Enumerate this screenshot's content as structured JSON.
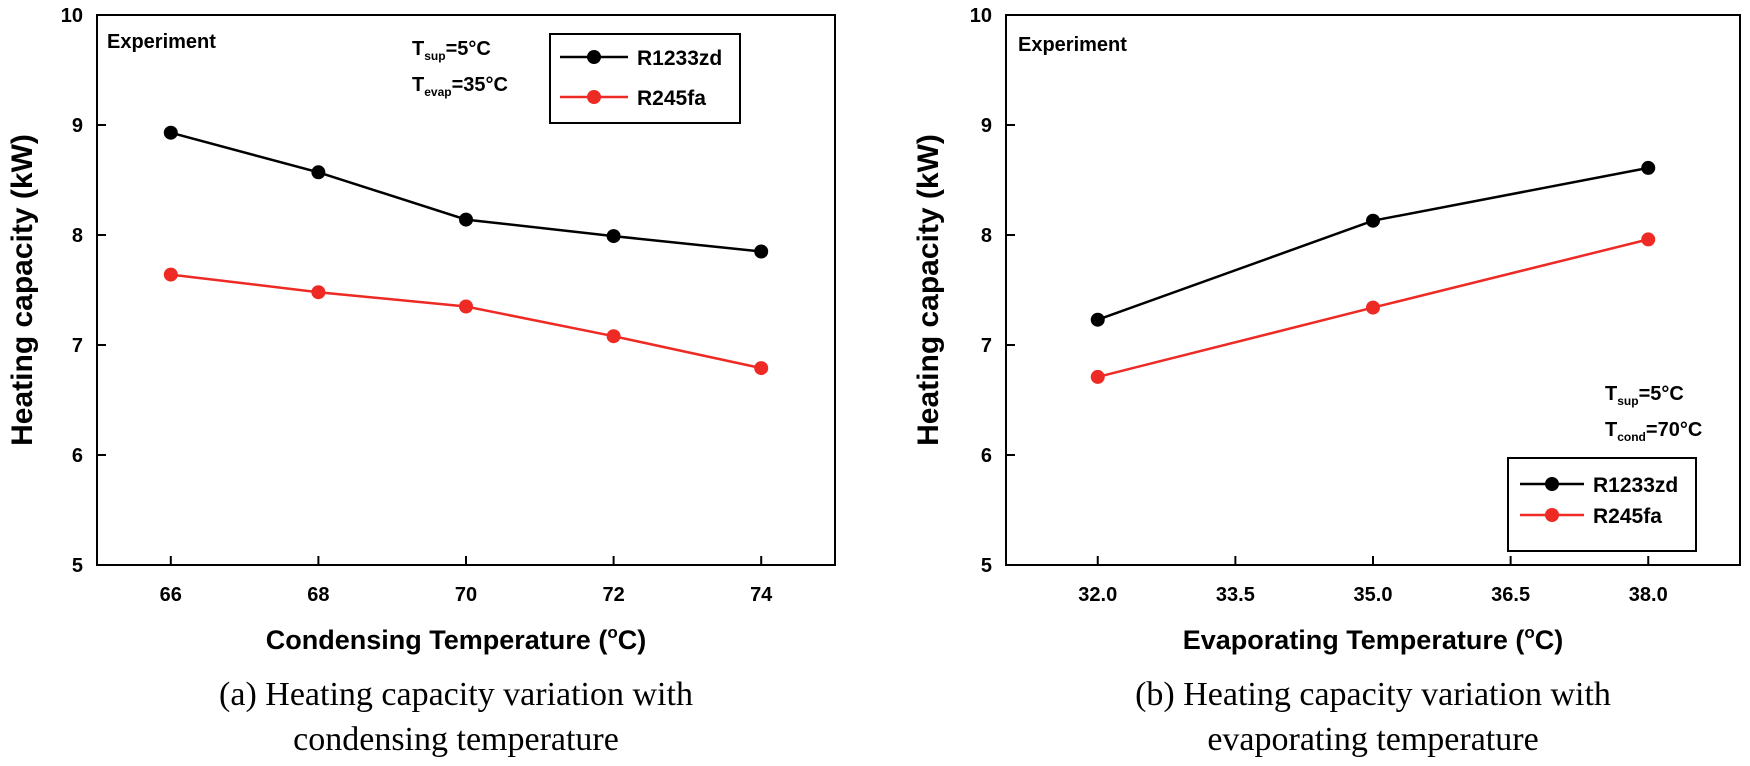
{
  "chart_data": [
    {
      "type": "line",
      "title": "",
      "xlabel": "Condensing Temperature (",
      "xlabel_sup": "o",
      "xlabel_tail": "C)",
      "ylabel": "Heating capacity (kW)",
      "xlim": [
        65,
        75
      ],
      "ylim": [
        5,
        10
      ],
      "x": [
        66,
        68,
        70,
        72,
        74
      ],
      "xticks": [
        "66",
        "68",
        "70",
        "72",
        "74"
      ],
      "yticks": [
        "5",
        "6",
        "7",
        "8",
        "9",
        "10"
      ],
      "series": [
        {
          "name": "R1233zd",
          "color": "#000000",
          "values": [
            8.93,
            8.57,
            8.14,
            7.99,
            7.85
          ]
        },
        {
          "name": "R245fa",
          "color": "#ee2a24",
          "values": [
            7.64,
            7.48,
            7.35,
            7.08,
            6.79
          ]
        }
      ],
      "legend": "top-right",
      "annotation_label": "Experiment",
      "conditions": [
        {
          "base": "T",
          "sub": "sup",
          "value": "=5°C"
        },
        {
          "base": "T",
          "sub": "evap",
          "value": "=35°C"
        }
      ],
      "caption": [
        "(a) Heating capacity variation with",
        "condensing temperature"
      ]
    },
    {
      "type": "line",
      "title": "",
      "xlabel": "Evaporating Temperature (",
      "xlabel_sup": "o",
      "xlabel_tail": "C)",
      "ylabel": "Heating capacity (kW)",
      "xlim": [
        31.0,
        39.0
      ],
      "ylim": [
        5,
        10
      ],
      "x": [
        32.0,
        35.0,
        38.0
      ],
      "xticks": [
        "32.0",
        "33.5",
        "35.0",
        "36.5",
        "38.0"
      ],
      "xtick_values": [
        32.0,
        33.5,
        35.0,
        36.5,
        38.0
      ],
      "yticks": [
        "5",
        "6",
        "7",
        "8",
        "9",
        "10"
      ],
      "series": [
        {
          "name": "R1233zd",
          "color": "#000000",
          "values": [
            7.23,
            8.13,
            8.61
          ]
        },
        {
          "name": "R245fa",
          "color": "#ee2a24",
          "values": [
            6.71,
            7.34,
            7.96
          ]
        }
      ],
      "legend": "bottom-right",
      "annotation_label": "Experiment",
      "conditions": [
        {
          "base": "T",
          "sub": "sup",
          "value": "=5°C"
        },
        {
          "base": "T",
          "sub": "cond",
          "value": "=70°C"
        }
      ],
      "caption": [
        "(b) Heating capacity variation with",
        "evaporating temperature"
      ]
    }
  ]
}
